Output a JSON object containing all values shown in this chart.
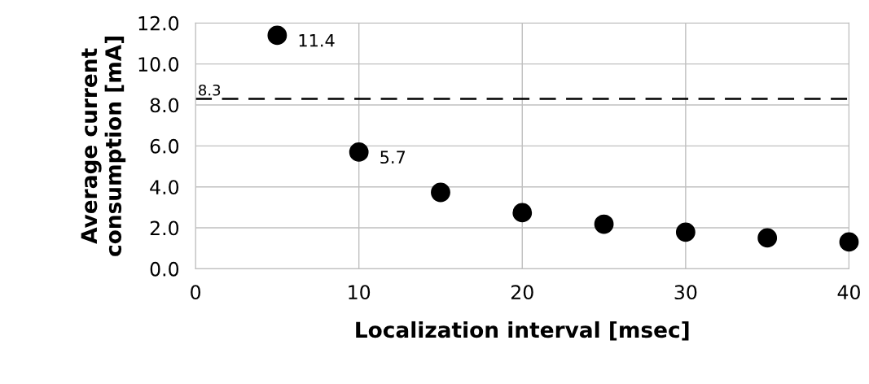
{
  "chart_data": {
    "type": "scatter",
    "xlabel": "Localization interval [msec]",
    "ylabel": "Average current\nconsumption [mA]",
    "x": [
      5,
      10,
      15,
      20,
      25,
      30,
      35,
      40
    ],
    "series": [
      {
        "color": "#000000",
        "values": [
          11.4,
          5.7,
          3.73,
          2.74,
          2.18,
          1.79,
          1.51,
          1.31
        ],
        "value_labels": [
          "11.4",
          "5.7",
          null,
          null,
          null,
          null,
          null,
          null
        ]
      }
    ],
    "xlim": [
      0,
      40
    ],
    "xticks": [
      0,
      10,
      20,
      30,
      40
    ],
    "ylim": [
      0,
      12
    ],
    "yticks": [
      {
        "value": 0,
        "label": "0.0"
      },
      {
        "value": 2,
        "label": "2.0"
      },
      {
        "value": 4,
        "label": "4.0"
      },
      {
        "value": 6,
        "label": "6.0"
      },
      {
        "value": 8,
        "label": "8.0"
      },
      {
        "value": 10,
        "label": "10.0"
      },
      {
        "value": 12,
        "label": "12.0"
      }
    ],
    "ref_lines": [
      {
        "axis": "y",
        "value": 8.3,
        "label": "8.3",
        "color": "#000000",
        "line_style": "dashed"
      }
    ],
    "grid": true,
    "marker": "circle"
  }
}
